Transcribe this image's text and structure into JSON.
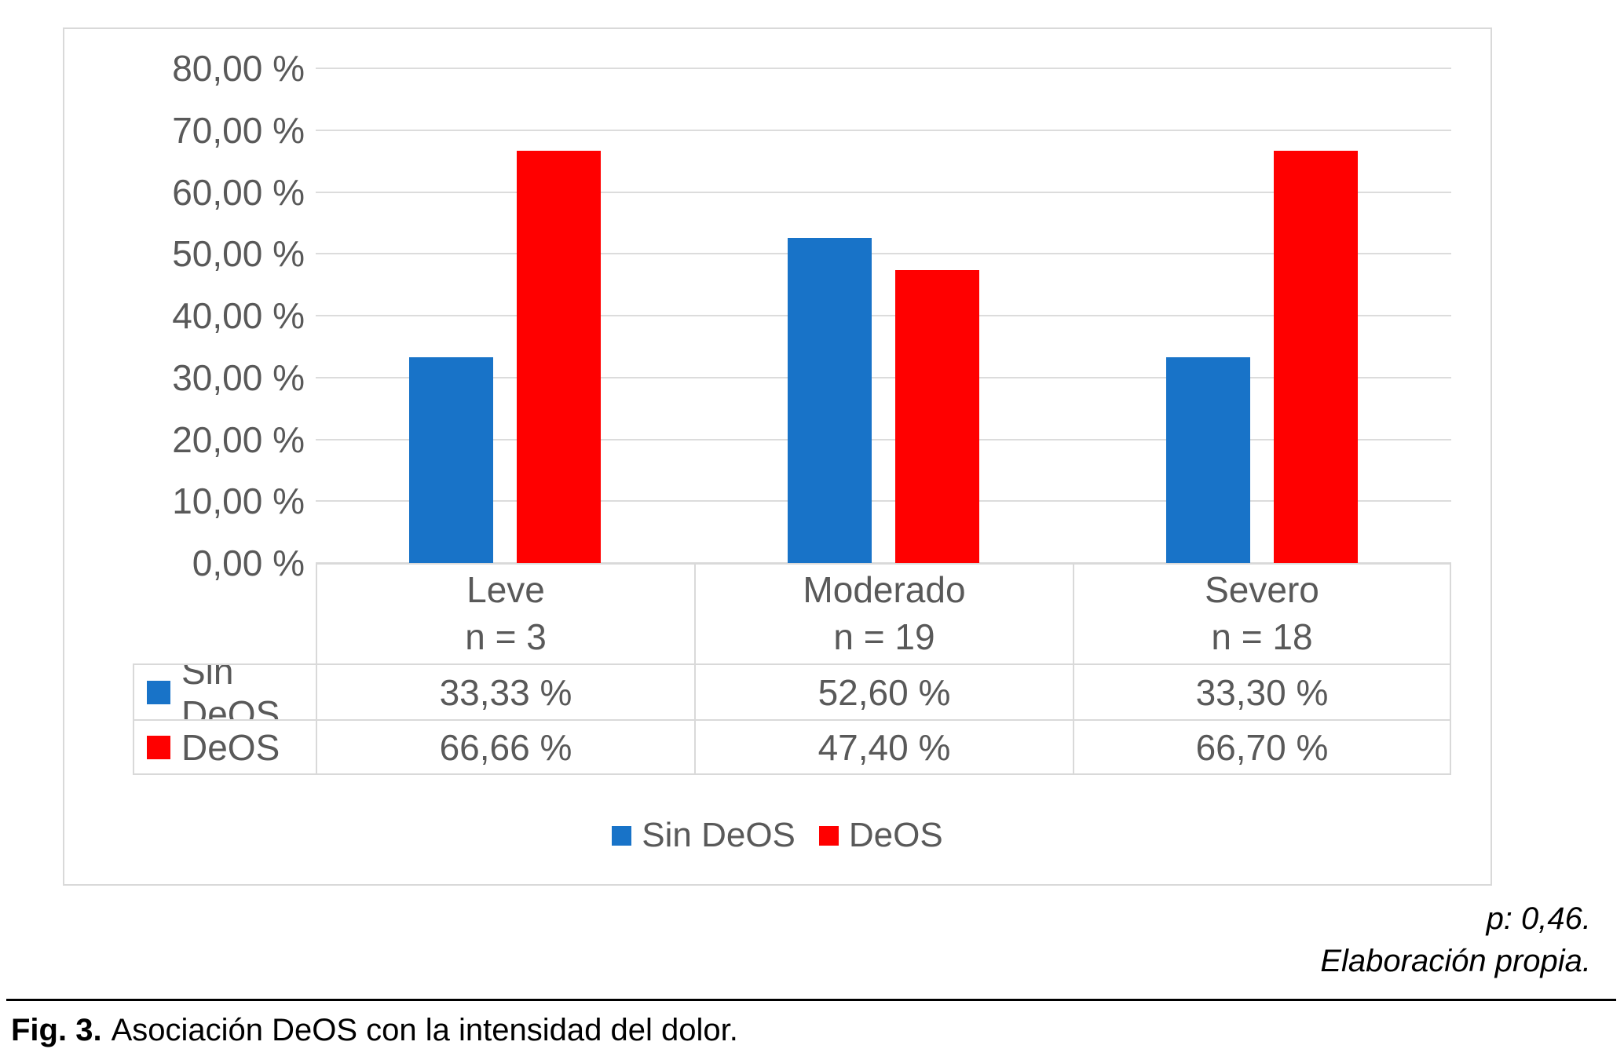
{
  "chart_data": {
    "type": "bar",
    "title": "",
    "categories": [
      "Leve",
      "Moderado",
      "Severo"
    ],
    "category_sublabels": [
      "n = 3",
      "n = 19",
      "n = 18"
    ],
    "series": [
      {
        "name": "Sin DeOS",
        "color": "#1873C8",
        "values": [
          33.33,
          52.6,
          33.3
        ],
        "labels": [
          "33,33 %",
          "52,60 %",
          "33,30 %"
        ]
      },
      {
        "name": "DeOS",
        "color": "#FF0000",
        "values": [
          66.66,
          47.4,
          66.7
        ],
        "labels": [
          "66,66 %",
          "47,40 %",
          "66,70 %"
        ]
      }
    ],
    "ylim": [
      0,
      80
    ],
    "ytick_step": 10,
    "ytick_labels_top_down": [
      "80,00 %",
      "70,00 %",
      "60,00 %",
      "50,00 %",
      "40,00 %",
      "30,00 %",
      "20,00 %",
      "10,00 %",
      "0,00 %"
    ],
    "grid": true,
    "legend_position": "bottom",
    "legend_labels": [
      "Sin DeOS",
      "DeOS"
    ],
    "data_table_shown": true
  },
  "annotations": {
    "p_value": "p: 0,46.",
    "source": "Elaboración propia."
  },
  "caption": {
    "prefix": "Fig. 3.",
    "text": "Asociación DeOS con la intensidad del dolor."
  }
}
